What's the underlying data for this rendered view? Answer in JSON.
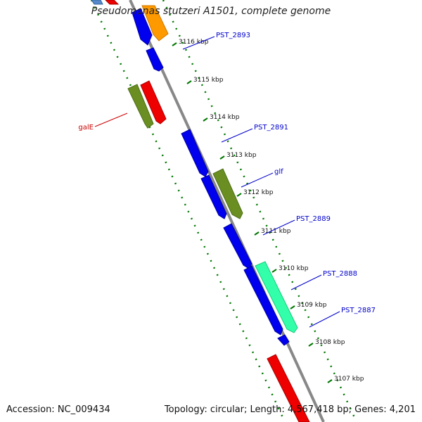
{
  "title": "Pseudomonas stutzeri A1501, complete genome",
  "footer": {
    "accession": "Accession: NC_009434",
    "summary": "Topology: circular; Length: 4,567,418 bp; Genes: 4,201"
  },
  "colors": {
    "blue": "#0000ee",
    "red": "#ee0000",
    "olive": "#6b8e23",
    "orange": "#ff9900",
    "aqua": "#33ffaa",
    "backbone": "#888888",
    "ticks": "#007700",
    "labelBlue": "#0000cc",
    "labelRed": "#cc0000"
  },
  "kbp_ticks": [
    "3116 kbp",
    "3115 kbp",
    "3114 kbp",
    "3113 kbp",
    "3112 kbp",
    "3111 kbp",
    "3110 kbp",
    "3109 kbp",
    "3108 kbp",
    "3107 kbp"
  ],
  "gene_labels": [
    {
      "text": "PST_2893",
      "color": "blue"
    },
    {
      "text": "PST_2891",
      "color": "blue"
    },
    {
      "text": "glf",
      "color": "blue"
    },
    {
      "text": "PST_2889",
      "color": "blue"
    },
    {
      "text": "PST_2888",
      "color": "blue"
    },
    {
      "text": "PST_2887",
      "color": "blue"
    },
    {
      "text": "galE",
      "color": "red"
    }
  ]
}
